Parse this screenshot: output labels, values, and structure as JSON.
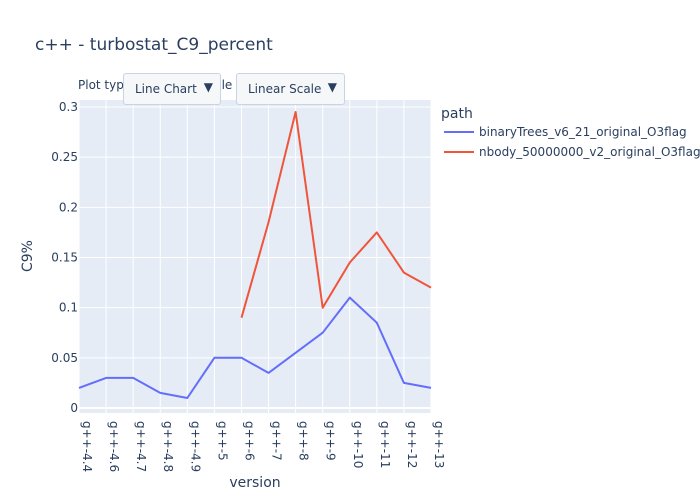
{
  "title": "c++ - turbostat_C9_percent",
  "menus": {
    "plot_type_label": "Plot type",
    "plot_type_value": "Line Chart",
    "scale_label": "Scale",
    "scale_value": "Linear Scale",
    "arrow": "▼"
  },
  "chart_data": {
    "type": "line",
    "title": "c++ - turbostat_C9_percent",
    "xlabel": "version",
    "ylabel": "C9%",
    "categories": [
      "g++-4.4",
      "g++-4.6",
      "g++-4.7",
      "g++-4.8",
      "g++-4.9",
      "g++-5",
      "g++-6",
      "g++-7",
      "g++-8",
      "g++-9",
      "g++-10",
      "g++-11",
      "g++-12",
      "g++-13"
    ],
    "ylim": [
      -0.005,
      0.307
    ],
    "yticks": [
      0,
      0.05,
      0.1,
      0.15,
      0.2,
      0.25,
      0.3
    ],
    "ytick_labels": [
      "0",
      "0.05",
      "0.1",
      "0.15",
      "0.2",
      "0.25",
      "0.3"
    ],
    "legend_title": "path",
    "legend_position": "right",
    "grid": true,
    "series": [
      {
        "name": "binaryTrees_v6_21_original_O3flag",
        "color": "#636efa",
        "values": [
          0.02,
          0.03,
          0.03,
          0.015,
          0.01,
          0.05,
          0.05,
          0.035,
          0.055,
          0.075,
          0.11,
          0.085,
          0.025,
          0.02
        ]
      },
      {
        "name": "nbody_50000000_v2_original_O3flag",
        "color": "#ef553b",
        "values": [
          null,
          null,
          null,
          null,
          null,
          null,
          0.09,
          0.185,
          0.295,
          0.1,
          0.145,
          0.175,
          0.135,
          0.12
        ]
      }
    ],
    "plot_bg": "#e5ecf6",
    "text_color": "#2a3f5f"
  }
}
